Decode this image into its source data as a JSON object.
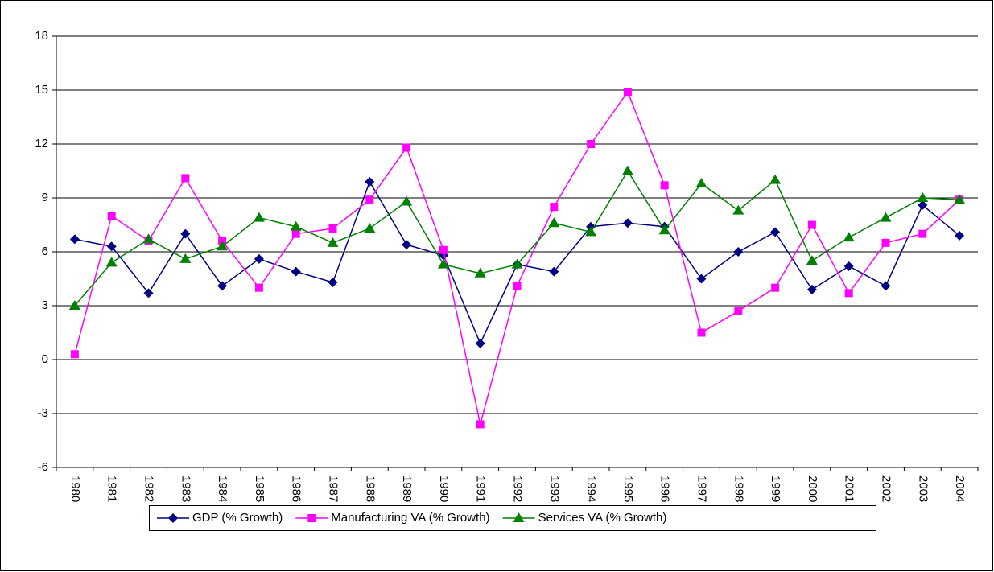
{
  "chart_data": {
    "type": "line",
    "categories": [
      "1980",
      "1981",
      "1982",
      "1983",
      "1984",
      "1985",
      "1986",
      "1987",
      "1988",
      "1989",
      "1990",
      "1991",
      "1992",
      "1993",
      "1994",
      "1995",
      "1996",
      "1997",
      "1998",
      "1999",
      "2000",
      "2001",
      "2002",
      "2003",
      "2004"
    ],
    "series": [
      {
        "name": "GDP (% Growth)",
        "color": "#000080",
        "marker": "diamond",
        "values": [
          6.7,
          6.3,
          3.7,
          7.0,
          4.1,
          5.6,
          4.9,
          4.3,
          9.9,
          6.4,
          5.8,
          0.9,
          5.3,
          4.9,
          7.4,
          7.6,
          7.4,
          4.5,
          6.0,
          7.1,
          3.9,
          5.2,
          4.1,
          8.6,
          6.9
        ]
      },
      {
        "name": "Manufacturing VA (% Growth)",
        "color": "#ff00ff",
        "marker": "square",
        "values": [
          0.3,
          8.0,
          6.6,
          10.1,
          6.6,
          4.0,
          7.0,
          7.3,
          8.9,
          11.8,
          6.1,
          -3.6,
          4.1,
          8.5,
          12.0,
          14.9,
          9.7,
          1.5,
          2.7,
          4.0,
          7.5,
          3.7,
          6.5,
          7.0,
          8.9
        ]
      },
      {
        "name": "Services VA (% Growth)",
        "color": "#008000",
        "marker": "triangle",
        "values": [
          3.0,
          5.4,
          6.7,
          5.6,
          6.3,
          7.9,
          7.4,
          6.5,
          7.3,
          8.8,
          5.3,
          4.8,
          5.3,
          7.6,
          7.1,
          10.5,
          7.2,
          9.8,
          8.3,
          10.0,
          5.5,
          6.8,
          7.9,
          9.0,
          8.9
        ]
      }
    ],
    "ylim": [
      -6,
      18
    ],
    "yticks": [
      -6,
      -3,
      0,
      3,
      6,
      9,
      12,
      15,
      18
    ],
    "grid": true,
    "legend": "bottom"
  }
}
